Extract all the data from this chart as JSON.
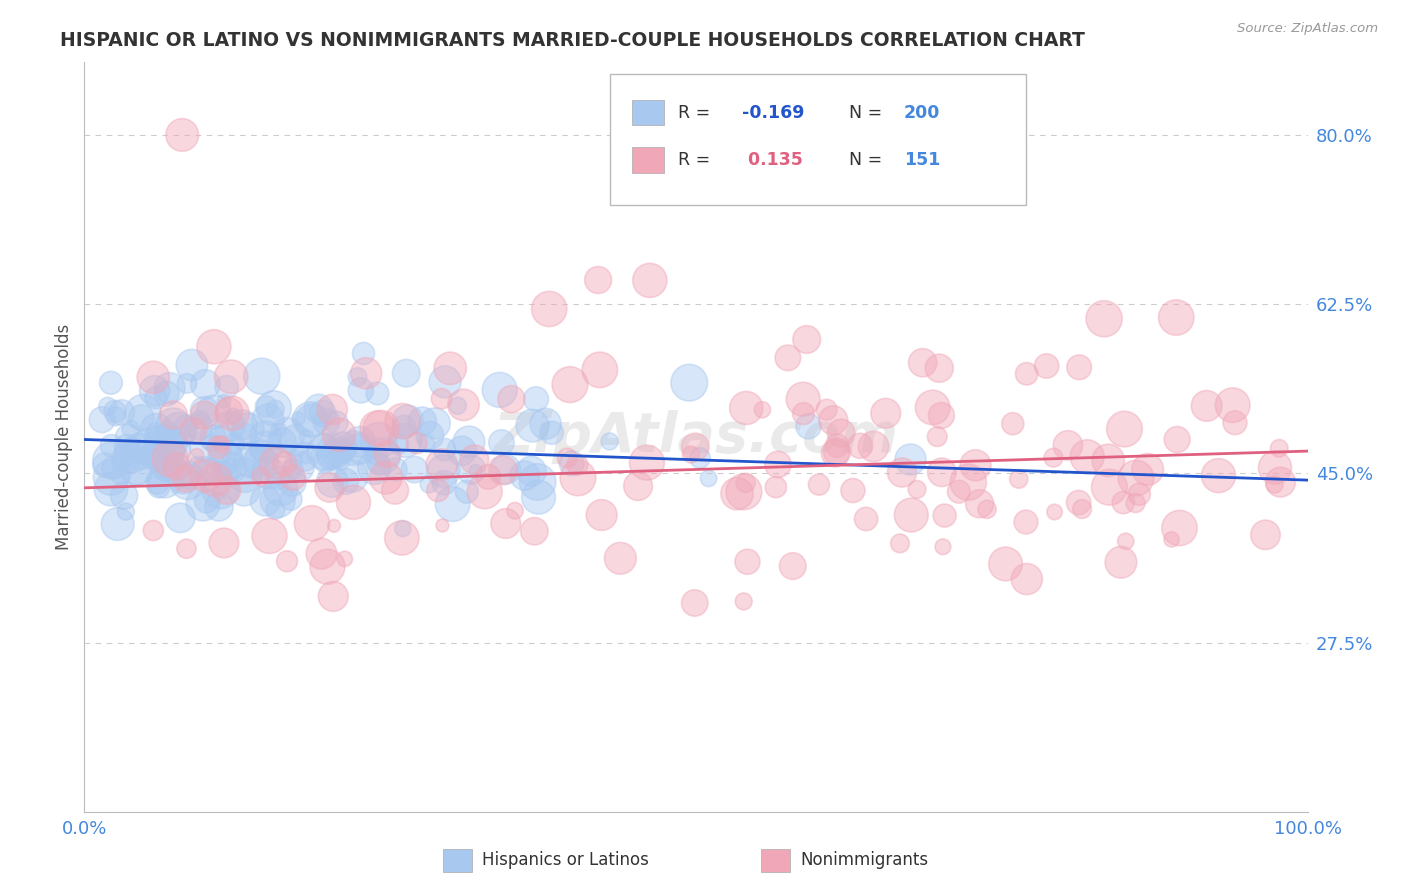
{
  "title": "HISPANIC OR LATINO VS NONIMMIGRANTS MARRIED-COUPLE HOUSEHOLDS CORRELATION CHART",
  "source": "Source: ZipAtlas.com",
  "ylabel": "Married-couple Households",
  "xlim": [
    0.0,
    1.0
  ],
  "ylim": [
    0.1,
    0.875
  ],
  "yticks": [
    0.275,
    0.45,
    0.625,
    0.8
  ],
  "ytick_labels": [
    "27.5%",
    "45.0%",
    "62.5%",
    "80.0%"
  ],
  "xticks": [
    0.0,
    1.0
  ],
  "xtick_labels": [
    "0.0%",
    "100.0%"
  ],
  "legend_labels": [
    "Hispanics or Latinos",
    "Nonimmigrants"
  ],
  "blue_R": -0.169,
  "blue_N": 200,
  "pink_R": 0.135,
  "pink_N": 151,
  "blue_color": "#A8C8F0",
  "pink_color": "#F0A8B8",
  "blue_line_color": "#2255CC",
  "pink_line_color": "#E06080",
  "title_color": "#333333",
  "axis_label_color": "#555555",
  "tick_label_color": "#4488DD",
  "grid_color": "#CCCCCC",
  "background_color": "#FFFFFF",
  "watermark": "ZipAtlas.com",
  "blue_intercept": 0.485,
  "blue_slope": -0.042,
  "pink_intercept": 0.435,
  "pink_slope": 0.038
}
